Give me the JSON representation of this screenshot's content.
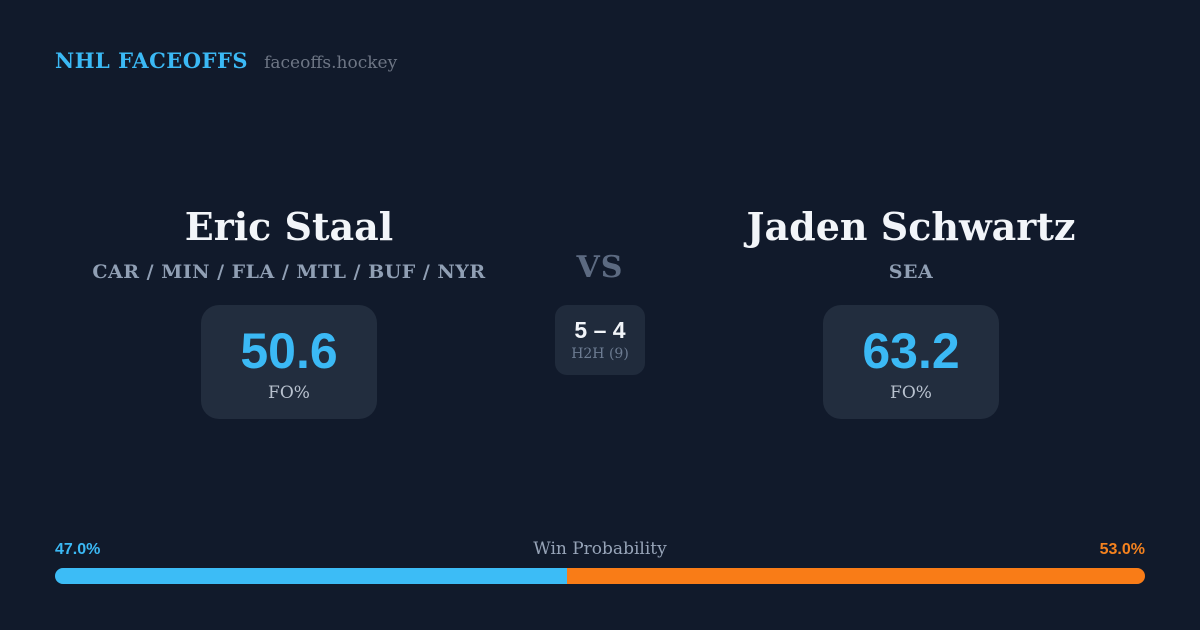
{
  "header": {
    "brand": "NHL FACEOFFS",
    "site": "faceoffs.hockey"
  },
  "players": {
    "left": {
      "name": "Eric Staal",
      "teams": "CAR / MIN / FLA / MTL / BUF / NYR",
      "fo_pct": "50.6",
      "fo_label": "FO%"
    },
    "right": {
      "name": "Jaden Schwartz",
      "teams": "SEA",
      "fo_pct": "63.2",
      "fo_label": "FO%"
    }
  },
  "center": {
    "vs_label": "VS",
    "h2h_score": "5 – 4",
    "h2h_label": "H2H (9)"
  },
  "win_probability": {
    "title": "Win Probability",
    "left": {
      "label": "47.0%",
      "value": 47.0
    },
    "right": {
      "label": "53.0%",
      "value": 53.0
    }
  },
  "colors": {
    "background": "#111a2b",
    "card": "#222d3e",
    "center_card": "#202b3c",
    "accent_blue": "#3bb9f5",
    "accent_orange": "#f5821e",
    "bar_blue": "#3cbcf6",
    "bar_orange": "#f97c17"
  }
}
